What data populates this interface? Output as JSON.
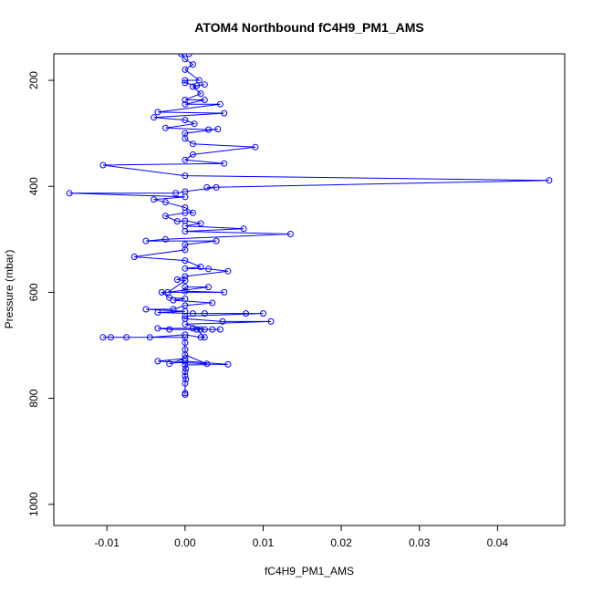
{
  "chart_data": {
    "type": "line",
    "title": "ATOM4 Northbound fC4H9_PM1_AMS",
    "xlabel": "fC4H9_PM1_AMS",
    "ylabel": "Pressure (mbar)",
    "xlim": [
      -0.0168,
      0.0486
    ],
    "ylim": [
      150,
      1040
    ],
    "y_reversed": true,
    "grid": false,
    "x_ticks": [
      -0.01,
      0.0,
      0.01,
      0.02,
      0.03,
      0.04
    ],
    "x_tick_labels": [
      "-0.01",
      "0.00",
      "0.01",
      "0.02",
      "0.03",
      "0.04"
    ],
    "y_ticks": [
      200,
      400,
      600,
      800,
      1000
    ],
    "y_tick_labels": [
      "200",
      "400",
      "600",
      "800",
      "1000"
    ],
    "series": [
      {
        "color": "#0000ff",
        "marker": "circle-open",
        "points": [
          [
            0.0,
            793
          ],
          [
            0.0,
            790
          ],
          [
            0.0,
            772
          ],
          [
            0.0001,
            764
          ],
          [
            0.0,
            758
          ],
          [
            0.0,
            750
          ],
          [
            0.0001,
            744
          ],
          [
            0.0,
            737
          ],
          [
            0.0055,
            736
          ],
          [
            0.0,
            730
          ],
          [
            -0.002,
            735
          ],
          [
            0.0,
            725
          ],
          [
            -0.0035,
            730
          ],
          [
            0.0028,
            735
          ],
          [
            0.0,
            718
          ],
          [
            0.0,
            708
          ],
          [
            0.0,
            695
          ],
          [
            0.0,
            685
          ],
          [
            -0.0105,
            685
          ],
          [
            -0.0095,
            685
          ],
          [
            -0.0075,
            685
          ],
          [
            -0.0045,
            685
          ],
          [
            0.0,
            680
          ],
          [
            0.002,
            685
          ],
          [
            0.0025,
            685
          ],
          [
            0.0015,
            670
          ],
          [
            0.0045,
            670
          ],
          [
            0.0035,
            670
          ],
          [
            0.002,
            670
          ],
          [
            -0.002,
            670
          ],
          [
            -0.0035,
            668
          ],
          [
            0.001,
            668
          ],
          [
            0.0025,
            670
          ],
          [
            0.0,
            660
          ],
          [
            0.011,
            655
          ],
          [
            0.0048,
            655
          ],
          [
            0.0,
            650
          ],
          [
            0.0,
            645
          ],
          [
            0.01,
            640
          ],
          [
            0.0078,
            640
          ],
          [
            0.0025,
            640
          ],
          [
            0.001,
            640
          ],
          [
            -0.0035,
            638
          ],
          [
            0.0,
            636
          ],
          [
            -0.005,
            632
          ],
          [
            -0.0015,
            632
          ],
          [
            0.0,
            625
          ],
          [
            0.0035,
            620
          ],
          [
            -0.0015,
            615
          ],
          [
            0.0,
            612
          ],
          [
            -0.002,
            610
          ],
          [
            -0.003,
            600
          ],
          [
            0.005,
            600
          ],
          [
            0.0,
            598
          ],
          [
            0.0,
            590
          ],
          [
            0.003,
            590
          ],
          [
            -0.0022,
            600
          ],
          [
            0.0,
            578
          ],
          [
            -0.001,
            576
          ],
          [
            0.0,
            570
          ],
          [
            0.0055,
            560
          ],
          [
            0.003,
            556
          ],
          [
            0.0,
            555
          ],
          [
            0.002,
            552
          ],
          [
            0.0,
            540
          ],
          [
            -0.0065,
            533
          ],
          [
            0.0,
            520
          ],
          [
            0.0,
            510
          ],
          [
            0.004,
            503
          ],
          [
            -0.005,
            503
          ],
          [
            -0.0025,
            500
          ],
          [
            0.0135,
            490
          ],
          [
            0.0,
            485
          ],
          [
            0.0075,
            480
          ],
          [
            0.0,
            475
          ],
          [
            0.002,
            470
          ],
          [
            0.0,
            465
          ],
          [
            -0.001,
            466
          ],
          [
            -0.0025,
            456
          ],
          [
            0.0,
            450
          ],
          [
            0.001,
            450
          ],
          [
            0.0,
            440
          ],
          [
            -0.0025,
            430
          ],
          [
            -0.004,
            425
          ],
          [
            0.0,
            420
          ],
          [
            -0.0148,
            413
          ],
          [
            -0.0012,
            413
          ],
          [
            0.0,
            410
          ],
          [
            0.004,
            402
          ],
          [
            0.0028,
            402
          ],
          [
            0.0466,
            389
          ],
          [
            0.0,
            380
          ],
          [
            -0.0105,
            360
          ],
          [
            0.005,
            357
          ],
          [
            0.0,
            350
          ],
          [
            0.001,
            340
          ],
          [
            0.009,
            326
          ],
          [
            0.001,
            320
          ],
          [
            0.0,
            310
          ],
          [
            0.0,
            300
          ],
          [
            0.0042,
            292
          ],
          [
            0.003,
            293
          ],
          [
            -0.0025,
            290
          ],
          [
            0.0012,
            282
          ],
          [
            0.0,
            275
          ],
          [
            -0.004,
            270
          ],
          [
            0.005,
            262
          ],
          [
            -0.0035,
            260
          ],
          [
            0.0045,
            245
          ],
          [
            0.0,
            245
          ],
          [
            0.0025,
            237
          ],
          [
            0.0,
            237
          ],
          [
            0.002,
            225
          ],
          [
            0.001,
            212
          ],
          [
            0.0025,
            208
          ],
          [
            0.0015,
            210
          ],
          [
            0.0,
            205
          ],
          [
            0.0,
            200
          ],
          [
            0.0018,
            200
          ],
          [
            0.0,
            180
          ],
          [
            0.001,
            170
          ],
          [
            0.0,
            160
          ],
          [
            -0.0005,
            150
          ],
          [
            0.0005,
            150
          ]
        ]
      }
    ]
  }
}
